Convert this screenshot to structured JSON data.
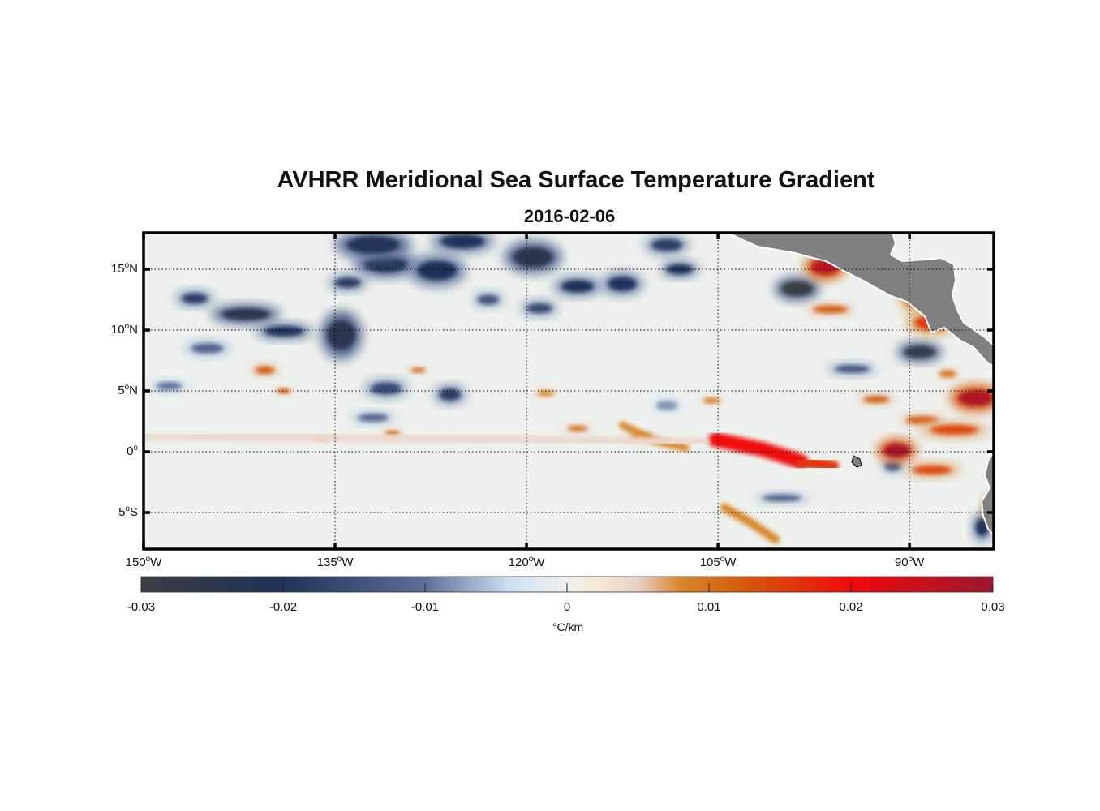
{
  "title": "AVHRR Meridional Sea Surface Temperature Gradient",
  "subtitle": "2016-02-06",
  "map": {
    "lon_range": [
      -150,
      -83.4
    ],
    "lat_range": [
      -8,
      18
    ],
    "lon_ticks": [
      {
        "value": -150,
        "label": "150",
        "hemi": "W"
      },
      {
        "value": -135,
        "label": "135",
        "hemi": "W"
      },
      {
        "value": -120,
        "label": "120",
        "hemi": "W"
      },
      {
        "value": -105,
        "label": "105",
        "hemi": "W"
      },
      {
        "value": -90,
        "label": "90",
        "hemi": "W"
      }
    ],
    "lat_ticks": [
      {
        "value": 15,
        "label": "15",
        "hemi": "N"
      },
      {
        "value": 10,
        "label": "10",
        "hemi": "N"
      },
      {
        "value": 5,
        "label": "5",
        "hemi": "N"
      },
      {
        "value": 0,
        "label": "0",
        "hemi": ""
      },
      {
        "value": -5,
        "label": "5",
        "hemi": "S"
      }
    ],
    "grid": "dotted",
    "land_color": "#808080",
    "features": [
      {
        "lon": -142,
        "lat": 11.3,
        "rx": 2.2,
        "ry": 0.6,
        "v": -0.024
      },
      {
        "lon": -146,
        "lat": 12.6,
        "rx": 1.2,
        "ry": 0.5,
        "v": -0.018
      },
      {
        "lon": -139,
        "lat": 9.9,
        "rx": 1.8,
        "ry": 0.5,
        "v": -0.02
      },
      {
        "lon": -134.5,
        "lat": 9.6,
        "rx": 1.3,
        "ry": 1.5,
        "v": -0.024
      },
      {
        "lon": -131,
        "lat": 15.4,
        "rx": 2.0,
        "ry": 0.8,
        "v": -0.022
      },
      {
        "lon": -127,
        "lat": 14.9,
        "rx": 1.8,
        "ry": 1.0,
        "v": -0.02
      },
      {
        "lon": -134,
        "lat": 13.9,
        "rx": 1.2,
        "ry": 0.5,
        "v": -0.018
      },
      {
        "lon": -132,
        "lat": 17.0,
        "rx": 2.4,
        "ry": 0.9,
        "v": -0.022
      },
      {
        "lon": -125,
        "lat": 17.3,
        "rx": 2.0,
        "ry": 0.7,
        "v": -0.02
      },
      {
        "lon": -119.5,
        "lat": 16.0,
        "rx": 1.8,
        "ry": 1.0,
        "v": -0.024
      },
      {
        "lon": -116,
        "lat": 13.6,
        "rx": 1.5,
        "ry": 0.6,
        "v": -0.02
      },
      {
        "lon": -112.5,
        "lat": 13.8,
        "rx": 1.3,
        "ry": 0.7,
        "v": -0.02
      },
      {
        "lon": -109,
        "lat": 17.0,
        "rx": 1.4,
        "ry": 0.6,
        "v": -0.018
      },
      {
        "lon": -108,
        "lat": 15.0,
        "rx": 1.2,
        "ry": 0.5,
        "v": -0.02
      },
      {
        "lon": -119,
        "lat": 11.8,
        "rx": 1.2,
        "ry": 0.5,
        "v": -0.016
      },
      {
        "lon": -123,
        "lat": 12.5,
        "rx": 1.0,
        "ry": 0.5,
        "v": -0.014
      },
      {
        "lon": -145,
        "lat": 8.5,
        "rx": 1.5,
        "ry": 0.5,
        "v": -0.012
      },
      {
        "lon": -131,
        "lat": 5.2,
        "rx": 1.4,
        "ry": 0.6,
        "v": -0.016
      },
      {
        "lon": -126,
        "lat": 4.7,
        "rx": 1.0,
        "ry": 0.6,
        "v": -0.018
      },
      {
        "lon": -132,
        "lat": 2.8,
        "rx": 1.4,
        "ry": 0.4,
        "v": -0.012
      },
      {
        "lon": -109,
        "lat": 3.8,
        "rx": 1.0,
        "ry": 0.5,
        "v": -0.008
      },
      {
        "lon": -148,
        "lat": 5.4,
        "rx": 1.2,
        "ry": 0.4,
        "v": -0.01
      },
      {
        "lon": -98.8,
        "lat": 13.4,
        "rx": 1.4,
        "ry": 0.7,
        "v": -0.03
      },
      {
        "lon": -89.2,
        "lat": 8.2,
        "rx": 1.4,
        "ry": 0.6,
        "v": -0.028
      },
      {
        "lon": -94.5,
        "lat": 6.8,
        "rx": 1.6,
        "ry": 0.4,
        "v": -0.014
      },
      {
        "lon": -100,
        "lat": -3.8,
        "rx": 1.8,
        "ry": 0.35,
        "v": -0.012
      },
      {
        "lon": -84.3,
        "lat": -6.2,
        "rx": 0.6,
        "ry": 0.9,
        "v": -0.02
      },
      {
        "lon": -91.3,
        "lat": -1.2,
        "rx": 0.8,
        "ry": 0.5,
        "v": -0.012
      },
      {
        "lon": -140.5,
        "lat": 6.7,
        "rx": 0.9,
        "ry": 0.4,
        "v": 0.012
      },
      {
        "lon": -139,
        "lat": 5.0,
        "rx": 0.6,
        "ry": 0.25,
        "v": 0.012
      },
      {
        "lon": -128.5,
        "lat": 6.7,
        "rx": 0.7,
        "ry": 0.25,
        "v": 0.011
      },
      {
        "lon": -130.5,
        "lat": 1.5,
        "rx": 0.7,
        "ry": 0.3,
        "v": 0.01
      },
      {
        "lon": -136,
        "lat": 1.1,
        "rx": 0.5,
        "ry": 0.25,
        "v": 0.008
      },
      {
        "lon": -118.5,
        "lat": 4.8,
        "rx": 0.8,
        "ry": 0.3,
        "v": 0.008
      },
      {
        "lon": -116,
        "lat": 1.9,
        "rx": 0.9,
        "ry": 0.3,
        "v": 0.01
      },
      {
        "lon": -111,
        "lat": 1.2,
        "rx": 1.0,
        "ry": 0.35,
        "v": 0.011
      },
      {
        "lon": -105.5,
        "lat": 4.2,
        "rx": 0.8,
        "ry": 0.3,
        "v": 0.009
      },
      {
        "lon": -96.6,
        "lat": 15.2,
        "rx": 1.3,
        "ry": 0.8,
        "v": 0.026
      },
      {
        "lon": -96.2,
        "lat": 11.7,
        "rx": 1.6,
        "ry": 0.4,
        "v": 0.012
      },
      {
        "lon": -89.5,
        "lat": 12.6,
        "rx": 1.0,
        "ry": 0.8,
        "v": 0.016
      },
      {
        "lon": -88.2,
        "lat": 10.6,
        "rx": 1.6,
        "ry": 0.7,
        "v": 0.016
      },
      {
        "lon": -92.6,
        "lat": 4.3,
        "rx": 1.2,
        "ry": 0.35,
        "v": 0.012
      },
      {
        "lon": -89.0,
        "lat": 2.6,
        "rx": 1.5,
        "ry": 0.4,
        "v": 0.012
      },
      {
        "lon": -84.8,
        "lat": 4.4,
        "rx": 1.6,
        "ry": 0.8,
        "v": 0.028
      },
      {
        "lon": -86.5,
        "lat": 1.8,
        "rx": 2.2,
        "ry": 0.5,
        "v": 0.014
      },
      {
        "lon": -91.0,
        "lat": 0.1,
        "rx": 1.2,
        "ry": 0.7,
        "v": 0.029
      },
      {
        "lon": -88.2,
        "lat": -1.5,
        "rx": 1.8,
        "ry": 0.45,
        "v": 0.014
      },
      {
        "lon": -83.6,
        "lat": -4.6,
        "rx": 0.5,
        "ry": 0.7,
        "v": 0.024
      },
      {
        "lon": -87.0,
        "lat": 6.4,
        "rx": 0.8,
        "ry": 0.35,
        "v": 0.01
      }
    ],
    "streaks": [
      {
        "points": [
          [
            -105.2,
            1.0
          ],
          [
            -101.5,
            0.2
          ],
          [
            -98.5,
            -0.8
          ]
        ],
        "width": 0.6,
        "v": 0.02
      },
      {
        "points": [
          [
            -98.5,
            -0.8
          ],
          [
            -96.0,
            -1.2
          ]
        ],
        "width": 0.5,
        "v": 0.016
      },
      {
        "points": [
          [
            -112.5,
            2.2
          ],
          [
            -110,
            0.9
          ],
          [
            -107.5,
            0.3
          ]
        ],
        "width": 0.3,
        "v": 0.008
      },
      {
        "points": [
          [
            -104.5,
            -4.6
          ],
          [
            -102.5,
            -5.8
          ],
          [
            -100.5,
            -7.2
          ]
        ],
        "width": 0.35,
        "v": 0.008
      },
      {
        "points": [
          [
            -150,
            1.3
          ],
          [
            -120,
            1.0
          ],
          [
            -106,
            0.8
          ]
        ],
        "width": 0.35,
        "v": 0.004
      }
    ]
  },
  "colorbar": {
    "min": -0.03,
    "max": 0.03,
    "stops": [
      {
        "value": -0.03,
        "color": "#3a3d42"
      },
      {
        "value": -0.02,
        "color": "#1f3258"
      },
      {
        "value": -0.01,
        "color": "#5d6f98"
      },
      {
        "value": -0.004,
        "color": "#cfe0f3"
      },
      {
        "value": 0.0,
        "color": "#eef2ee"
      },
      {
        "value": 0.002,
        "color": "#f8e9d6"
      },
      {
        "value": 0.005,
        "color": "#e8d0c8"
      },
      {
        "value": 0.008,
        "color": "#d8862a"
      },
      {
        "value": 0.012,
        "color": "#d45f0c"
      },
      {
        "value": 0.02,
        "color": "#ef0a0a"
      },
      {
        "value": 0.03,
        "color": "#9a1830"
      }
    ],
    "ticks": [
      "-0.03",
      "-0.02",
      "-0.01",
      "0",
      "0.01",
      "0.02",
      "0.03"
    ],
    "units": "°C/km"
  }
}
